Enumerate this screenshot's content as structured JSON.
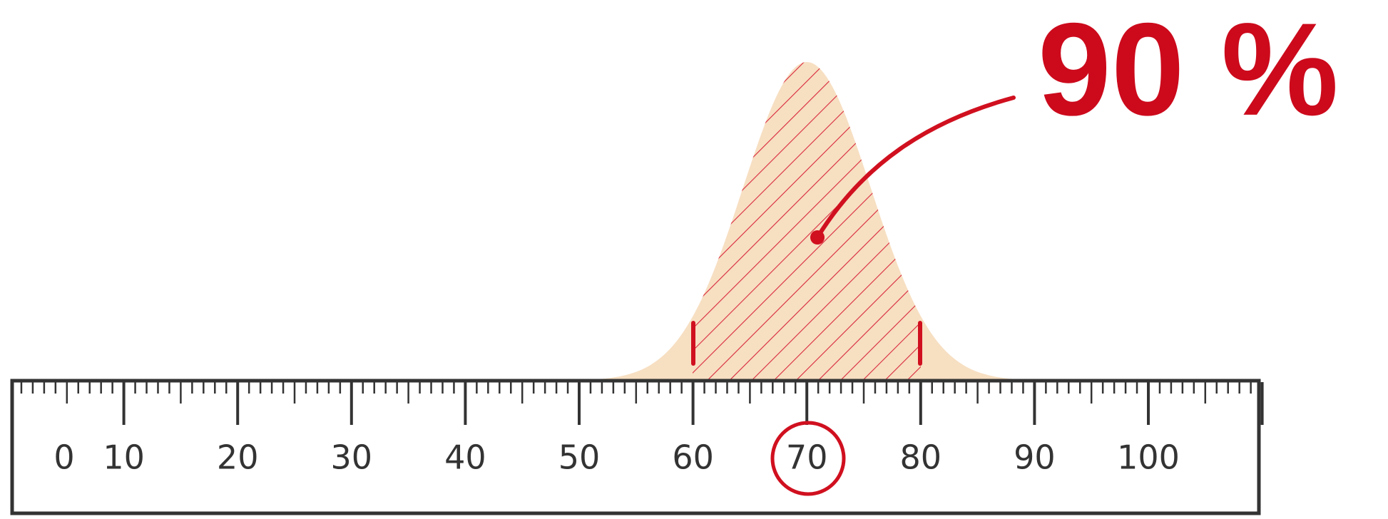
{
  "ruler": {
    "labels": [
      "0",
      "10",
      "20",
      "30",
      "40",
      "50",
      "60",
      "70",
      "80",
      "90",
      "100"
    ]
  },
  "annotation": "90 %"
}
